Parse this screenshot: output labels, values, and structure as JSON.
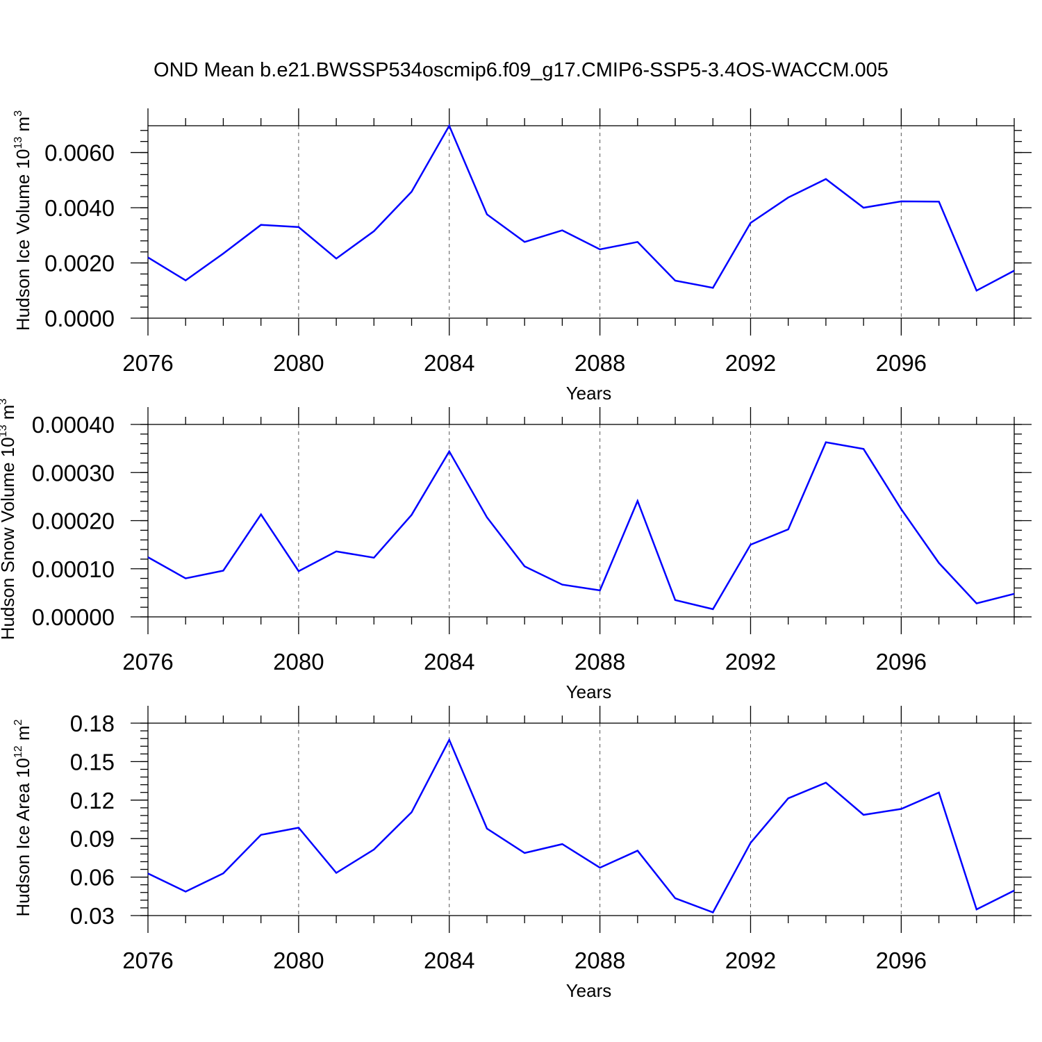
{
  "figure_title": "OND Mean b.e21.BWSSP534oscmip6.f09_g17.CMIP6-SSP5-3.4OS-WACCM.005",
  "colors": {
    "line": "#0000ff",
    "axis": "#000000",
    "grid": "#555555",
    "background": "#ffffff"
  },
  "chart_data": [
    {
      "type": "line",
      "ylabel": "Hudson Ice Volume 10",
      "ylabel_exp": "13",
      "ylabel_unit": " m",
      "ylabel_unit_exp": "3",
      "xlabel": "Years",
      "x": [
        2076,
        2077,
        2078,
        2079,
        2080,
        2081,
        2082,
        2083,
        2084,
        2085,
        2086,
        2087,
        2088,
        2089,
        2090,
        2091,
        2092,
        2093,
        2094,
        2095,
        2096,
        2097,
        2098,
        2099
      ],
      "series": [
        {
          "name": "Hudson Ice Volume",
          "values": [
            0.0022,
            0.00137,
            0.00234,
            0.00338,
            0.0033,
            0.00216,
            0.00315,
            0.00458,
            0.00697,
            0.00376,
            0.00276,
            0.00318,
            0.00249,
            0.00276,
            0.00136,
            0.0011,
            0.00345,
            0.00437,
            0.00504,
            0.004,
            0.00423,
            0.00422,
            0.001,
            0.00172
          ]
        }
      ],
      "xlim": [
        2076,
        2099
      ],
      "ylim": [
        0.0,
        0.00697
      ],
      "xticks": [
        2076,
        2080,
        2084,
        2088,
        2092,
        2096
      ],
      "xtick_labels": [
        "2076",
        "2080",
        "2084",
        "2088",
        "2092",
        "2096"
      ],
      "yticks": [
        0.0,
        0.002,
        0.004,
        0.006
      ],
      "ytick_labels": [
        "0.0000",
        "0.0020",
        "0.0040",
        "0.0060"
      ],
      "y_minor_step": 0.0004,
      "grid": "x-major-dashed"
    },
    {
      "type": "line",
      "ylabel": "Hudson Snow Volume 10",
      "ylabel_exp": "13",
      "ylabel_unit": " m",
      "ylabel_unit_exp": "3",
      "xlabel": "Years",
      "x": [
        2076,
        2077,
        2078,
        2079,
        2080,
        2081,
        2082,
        2083,
        2084,
        2085,
        2086,
        2087,
        2088,
        2089,
        2090,
        2091,
        2092,
        2093,
        2094,
        2095,
        2096,
        2097,
        2098,
        2099
      ],
      "series": [
        {
          "name": "Hudson Snow Volume",
          "values": [
            0.000124,
            8e-05,
            9.6e-05,
            0.000213,
            9.5e-05,
            0.000136,
            0.000123,
            0.000212,
            0.000344,
            0.000207,
            0.000105,
            6.7e-05,
            5.5e-05,
            0.000241,
            3.5e-05,
            1.6e-05,
            0.00015,
            0.000182,
            0.000363,
            0.000349,
            0.000224,
            0.000112,
            2.8e-05,
            4.8e-05
          ]
        }
      ],
      "xlim": [
        2076,
        2099
      ],
      "ylim": [
        0.0,
        0.0004
      ],
      "xticks": [
        2076,
        2080,
        2084,
        2088,
        2092,
        2096
      ],
      "xtick_labels": [
        "2076",
        "2080",
        "2084",
        "2088",
        "2092",
        "2096"
      ],
      "yticks": [
        0.0,
        0.0001,
        0.0002,
        0.0003,
        0.0004
      ],
      "ytick_labels": [
        "0.00000",
        "0.00010",
        "0.00020",
        "0.00030",
        "0.00040"
      ],
      "y_minor_step": 2e-05,
      "grid": "x-major-dashed"
    },
    {
      "type": "line",
      "ylabel": "Hudson Ice Area 10",
      "ylabel_exp": "12",
      "ylabel_unit": " m",
      "ylabel_unit_exp": "2",
      "xlabel": "Years",
      "x": [
        2076,
        2077,
        2078,
        2079,
        2080,
        2081,
        2082,
        2083,
        2084,
        2085,
        2086,
        2087,
        2088,
        2089,
        2090,
        2091,
        2092,
        2093,
        2094,
        2095,
        2096,
        2097,
        2098,
        2099
      ],
      "series": [
        {
          "name": "Hudson Ice Area",
          "values": [
            0.0628,
            0.0487,
            0.0629,
            0.0929,
            0.0985,
            0.0633,
            0.0815,
            0.1105,
            0.167,
            0.0978,
            0.0788,
            0.0857,
            0.0673,
            0.0806,
            0.0435,
            0.0325,
            0.0867,
            0.1214,
            0.1336,
            0.1085,
            0.1131,
            0.1259,
            0.0348,
            0.0495
          ]
        }
      ],
      "xlim": [
        2076,
        2099
      ],
      "ylim": [
        0.03,
        0.18
      ],
      "xticks": [
        2076,
        2080,
        2084,
        2088,
        2092,
        2096
      ],
      "xtick_labels": [
        "2076",
        "2080",
        "2084",
        "2088",
        "2092",
        "2096"
      ],
      "yticks": [
        0.03,
        0.06,
        0.09,
        0.12,
        0.15,
        0.18
      ],
      "ytick_labels": [
        "0.03",
        "0.06",
        "0.09",
        "0.12",
        "0.15",
        "0.18"
      ],
      "y_minor_step": 0.006,
      "grid": "x-major-dashed"
    }
  ]
}
